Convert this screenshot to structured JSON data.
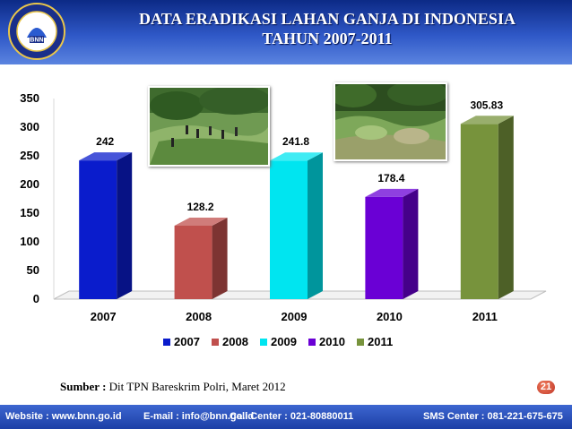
{
  "header": {
    "title_line1": "DATA ERADIKASI LAHAN GANJA DI INDONESIA",
    "title_line2": "TAHUN 2007-2011",
    "logo_text": "BNN",
    "logo_ring_text": "BADAN NARKOTIKA NASIONAL REPUBLIK INDONESIA"
  },
  "chart_data": {
    "type": "bar",
    "title": "",
    "xlabel": "",
    "ylabel": "",
    "categories": [
      "2007",
      "2008",
      "2009",
      "2010",
      "2011"
    ],
    "values": [
      242,
      128.2,
      241.8,
      178.4,
      305.83
    ],
    "value_labels": [
      "242",
      "128.2",
      "241.8",
      "178.4",
      "305.83"
    ],
    "colors": [
      "#0a1ccc",
      "#c0504d",
      "#00e5f0",
      "#6a00d5",
      "#77933c"
    ],
    "ylim": [
      0,
      350
    ],
    "yticks": [
      0,
      50,
      100,
      150,
      200,
      250,
      300,
      350
    ],
    "legend": [
      "2007",
      "2008",
      "2009",
      "2010",
      "2011"
    ],
    "legend_position": "bottom",
    "grid": false,
    "style": "3d"
  },
  "photos": [
    {
      "name": "field-photo-eradication-team",
      "description_icon": "photo-icon"
    },
    {
      "name": "field-photo-cannabis-plants",
      "description_icon": "photo-icon"
    }
  ],
  "source": {
    "label": "Sumber :",
    "text": " Dit TPN Bareskrim Polri, Maret 2012"
  },
  "page_number": "21",
  "footer": {
    "website": "Website : www.bnn.go.id",
    "email": "E-mail : info@bnn.go.id",
    "call_center": "Call Center  :  021-80880011",
    "sms_center": "SMS Center : 081-221-675-675"
  }
}
